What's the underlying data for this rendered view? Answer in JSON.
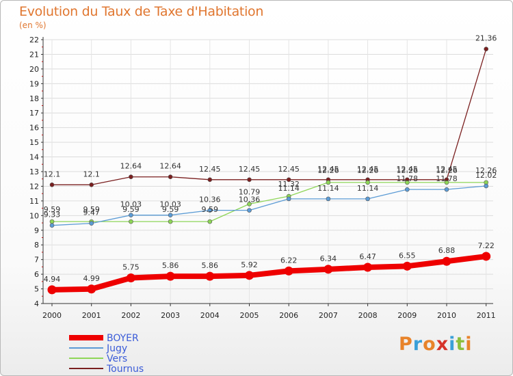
{
  "title": "Evolution du Taux de Taxe d'Habitation",
  "unit": "(en %)",
  "logo": {
    "text": "Proxiti",
    "colors": [
      "#e8832a",
      "#3aa0d8",
      "#e8832a",
      "#d6332a",
      "#3aa0d8",
      "#8bbf3c",
      "#e8832a"
    ]
  },
  "chart_data": {
    "type": "line",
    "x": [
      "2000",
      "2001",
      "2002",
      "2003",
      "2004",
      "2005",
      "2006",
      "2007",
      "2008",
      "2009",
      "2010",
      "2011"
    ],
    "ylim": [
      4,
      22
    ],
    "yticks": [
      "4",
      "5",
      "6",
      "7",
      "8",
      "9",
      "10",
      "11",
      "12",
      "13",
      "14",
      "15",
      "16",
      "17",
      "18",
      "19",
      "20",
      "21",
      "22"
    ],
    "grid": true,
    "legend_position": "bottom-left",
    "series": [
      {
        "name": "BOYER",
        "color": "#ee0000",
        "values": [
          4.94,
          4.99,
          5.75,
          5.86,
          5.86,
          5.92,
          6.22,
          6.34,
          6.47,
          6.55,
          6.88,
          7.22
        ],
        "labels": [
          "4.94",
          "4.99",
          "5.75",
          "5.86",
          "5.86",
          "5.92",
          "6.22",
          "6.34",
          "6.47",
          "6.55",
          "6.88",
          "7.22"
        ]
      },
      {
        "name": "Jugy",
        "color": "#5b9bd5",
        "values": [
          9.33,
          9.47,
          10.03,
          10.03,
          10.36,
          10.36,
          11.14,
          11.14,
          11.14,
          11.78,
          11.78,
          12.02
        ],
        "labels": [
          "9.33",
          "9.47",
          "10.03",
          "10.03",
          "10.36",
          "10.36",
          "11.14",
          "11.14",
          "11.14",
          "11.78",
          "11.78",
          "12.02"
        ]
      },
      {
        "name": "Vers",
        "color": "#8ed657",
        "values": [
          9.59,
          9.59,
          9.59,
          9.59,
          9.59,
          10.79,
          11.32,
          12.26,
          12.26,
          12.26,
          12.26,
          12.26
        ],
        "labels": [
          "9.59",
          "9.59",
          "9.59",
          "9.59",
          "9.59",
          "10.79",
          "11.32",
          "12.26",
          "12.26",
          "12.26",
          "12.26",
          "12.26"
        ]
      },
      {
        "name": "Tournus",
        "color": "#7a1f1f",
        "values": [
          12.1,
          12.1,
          12.64,
          12.64,
          12.45,
          12.45,
          12.45,
          12.45,
          12.45,
          12.45,
          12.45,
          21.36
        ],
        "labels": [
          "12.1",
          "12.1",
          "12.64",
          "12.64",
          "12.45",
          "12.45",
          "12.45",
          "12.45",
          "12.45",
          "12.45",
          "12.45",
          "21.36"
        ]
      }
    ]
  }
}
